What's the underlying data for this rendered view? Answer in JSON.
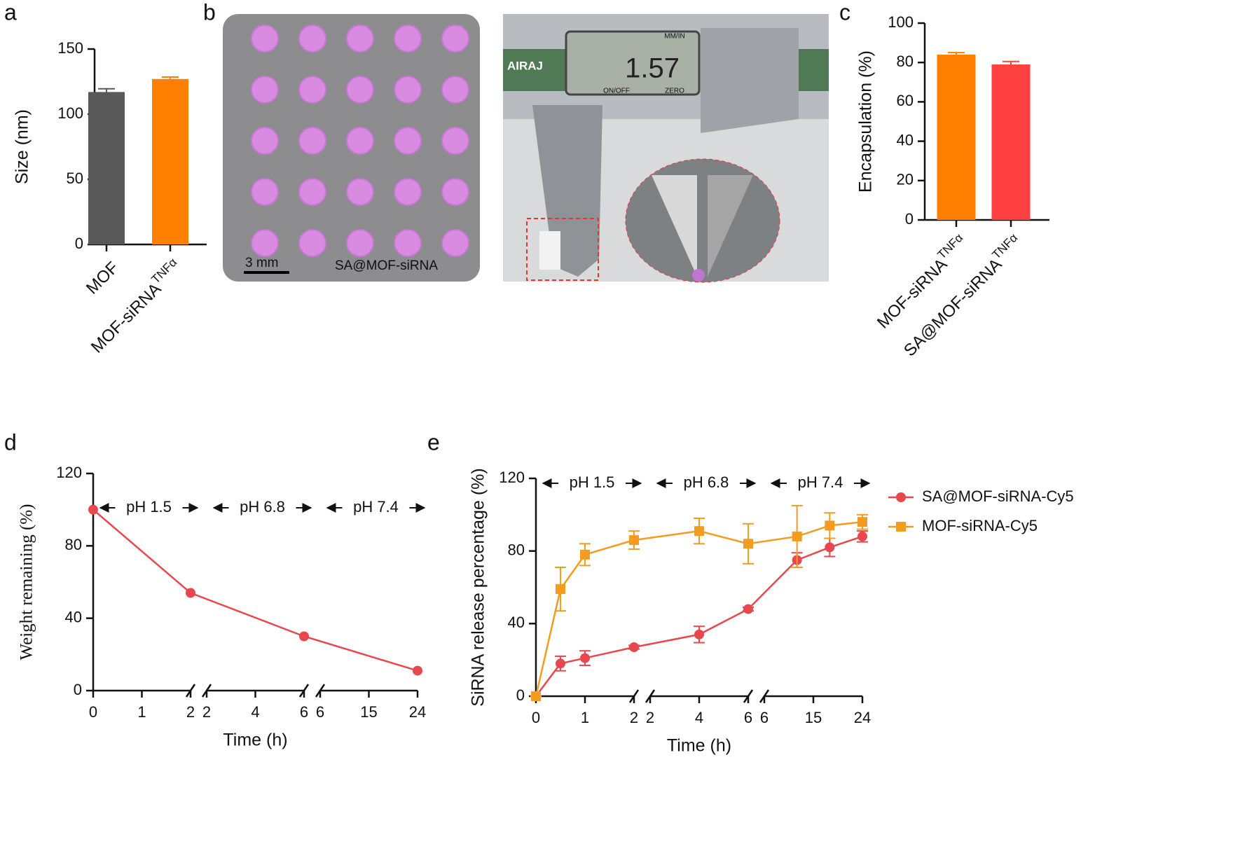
{
  "panel_labels": [
    "a",
    "b",
    "c",
    "d",
    "e"
  ],
  "photo": {
    "scale_bar": "3 mm",
    "sample": "SA@MOF-siRNA",
    "caliper_reading": "1.57",
    "brand": "AIRAJ",
    "buttons": [
      "MM/IN",
      "ON/OFF",
      "ZERO"
    ]
  },
  "chart_data": [
    {
      "type": "bar",
      "ylabel": "Size (nm)",
      "categories": [
        "MOF",
        "MOF-siRNA"
      ],
      "category_superscripts": [
        null,
        "TNFα"
      ],
      "values": [
        117,
        127
      ],
      "errors": [
        2.5,
        1.5
      ],
      "colors": [
        "#595959",
        "#ff8000"
      ],
      "ylim": [
        0,
        150
      ],
      "yticks": [
        0,
        50,
        100,
        150
      ]
    },
    {
      "type": "bar",
      "ylabel": "Encapsulation (%)",
      "categories": [
        "MOF-siRNA",
        "SA@MOF-siRNA"
      ],
      "category_superscripts": [
        "TNFα",
        "TNFα"
      ],
      "values": [
        84,
        79
      ],
      "errors": [
        1,
        1.5
      ],
      "colors": [
        "#ff8000",
        "#ff4040"
      ],
      "ylim": [
        0,
        100
      ],
      "yticks": [
        0,
        20,
        40,
        60,
        80,
        100
      ]
    },
    {
      "type": "line",
      "xlabel": "Time (h)",
      "ylabel": "Weight remaining (%)",
      "x_segments": [
        {
          "xlim": [
            0,
            2
          ],
          "xticks": [
            0,
            1,
            2
          ]
        },
        {
          "xlim": [
            2,
            6
          ],
          "xticks": [
            2,
            4,
            6
          ]
        },
        {
          "xlim": [
            6,
            24
          ],
          "xticks": [
            6,
            15,
            24
          ]
        }
      ],
      "annotations": [
        "pH 1.5",
        "pH 6.8",
        "pH 7.4"
      ],
      "ylim": [
        0,
        120
      ],
      "yticks": [
        0,
        40,
        80,
        120
      ],
      "x": [
        0,
        2,
        6,
        24
      ],
      "series": [
        {
          "color": "#e8474e",
          "marker": "circle",
          "values": [
            100,
            54,
            30,
            11
          ]
        }
      ]
    },
    {
      "type": "line",
      "xlabel": "Time (h)",
      "ylabel": "SiRNA release percentage (%)",
      "x_segments": [
        {
          "xlim": [
            0,
            2
          ],
          "xticks": [
            0,
            1,
            2
          ]
        },
        {
          "xlim": [
            2,
            6
          ],
          "xticks": [
            2,
            4,
            6
          ]
        },
        {
          "xlim": [
            6,
            24
          ],
          "xticks": [
            6,
            15,
            24
          ]
        }
      ],
      "annotations": [
        "pH 1.5",
        "pH 6.8",
        "pH 7.4"
      ],
      "ylim": [
        0,
        120
      ],
      "yticks": [
        0,
        40,
        80,
        120
      ],
      "legend": "right",
      "x": [
        0,
        0.5,
        1,
        2,
        4,
        6,
        12,
        18,
        24
      ],
      "series": [
        {
          "name": "SA@MOF-siRNA-Cy5",
          "color": "#e8474e",
          "marker": "circle",
          "values": [
            0,
            18,
            21,
            27,
            34,
            48,
            75,
            82,
            88
          ],
          "errors": [
            0,
            4,
            4,
            1,
            4.5,
            1,
            4,
            5,
            3
          ]
        },
        {
          "name": "MOF-siRNA-Cy5",
          "color": "#f39c1f",
          "marker": "square",
          "values": [
            0,
            59,
            78,
            86,
            91,
            84,
            88,
            94,
            96
          ],
          "errors": [
            0,
            12,
            6,
            5,
            7,
            11,
            17,
            7,
            4
          ]
        }
      ]
    }
  ]
}
